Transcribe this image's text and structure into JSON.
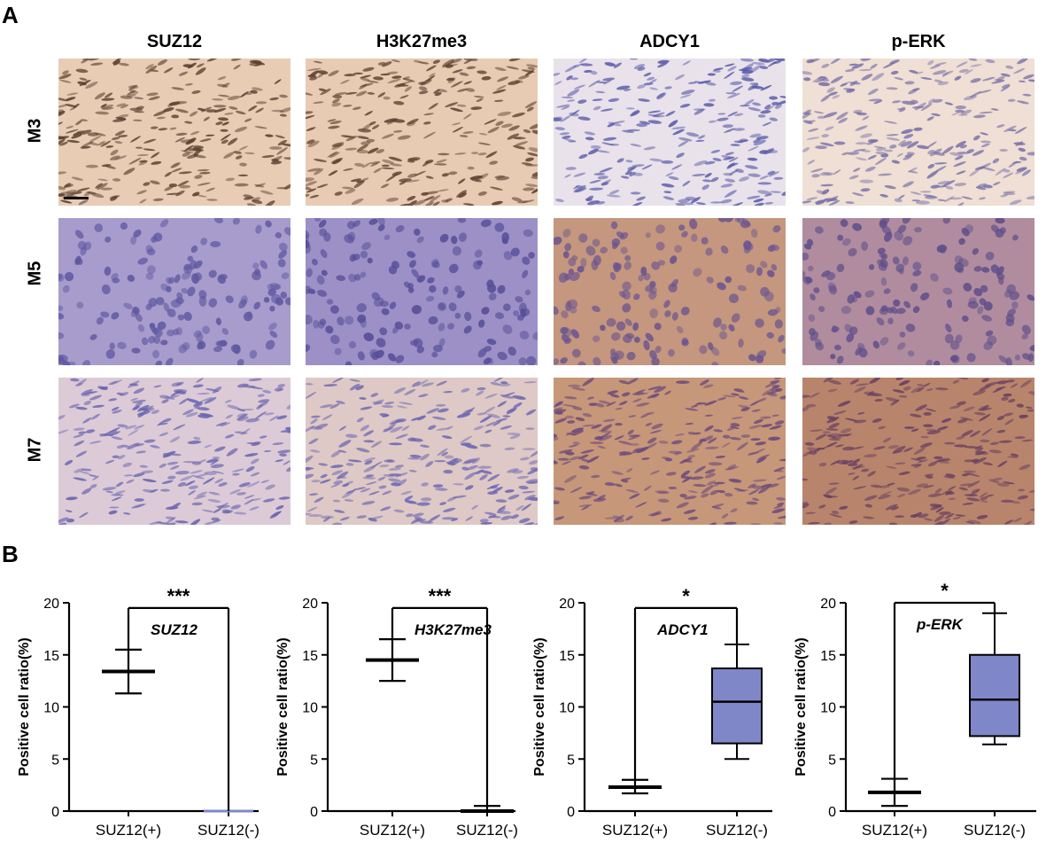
{
  "panels": {
    "a_label": "A",
    "b_label": "B"
  },
  "stains": [
    "SUZ12",
    "H3K27me3",
    "ADCY1",
    "p-ERK"
  ],
  "rows": [
    "M3",
    "M5",
    "M7"
  ],
  "micro_colors": {
    "M3": [
      "#e8cdb4",
      "#e7cbb2",
      "#e9e2ea",
      "#efdfd4"
    ],
    "M5": [
      "#a89ccc",
      "#9c90c6",
      "#c4977e",
      "#b08c9e"
    ],
    "M7": [
      "#dccbd6",
      "#dec9c6",
      "#c7977a",
      "#b8856c"
    ]
  },
  "nucleus_colors": {
    "M3": [
      "#5a4030",
      "#5e4030",
      "#5a5aa8",
      "#7870a8"
    ],
    "M5": [
      "#5e58a0",
      "#564e98",
      "#6a5490",
      "#5e4e8a"
    ],
    "M7": [
      "#6a64b0",
      "#6c66b0",
      "#6a4a7a",
      "#6a4060"
    ]
  },
  "chart_data": [
    {
      "type": "box",
      "series_label": "SUZ12",
      "ylabel": "Positive cell ratio(%)",
      "ylim": [
        0,
        20
      ],
      "yticks": [
        0,
        5,
        10,
        15,
        20
      ],
      "categories": [
        "SUZ12(+)",
        "SUZ12(-)"
      ],
      "groups": [
        {
          "min": 11.3,
          "q1": 13.4,
          "median": 13.4,
          "q3": 13.4,
          "max": 15.5,
          "filled": false
        },
        {
          "min": 0.0,
          "q1": 0.0,
          "median": 0.0,
          "q3": 0.0,
          "max": 0.0,
          "filled": false
        }
      ],
      "significance": "***",
      "bracket_y": 19.5
    },
    {
      "type": "box",
      "series_label": "H3K27me3",
      "ylabel": "Positive cell ratio(%)",
      "ylim": [
        0,
        20
      ],
      "yticks": [
        0,
        5,
        10,
        15,
        20
      ],
      "categories": [
        "SUZ12(+)",
        "SUZ12(-)"
      ],
      "groups": [
        {
          "min": 12.5,
          "q1": 14.5,
          "median": 14.5,
          "q3": 14.5,
          "max": 16.5,
          "filled": false
        },
        {
          "min": 0.0,
          "q1": 0.0,
          "median": 0.0,
          "q3": 0.0,
          "max": 0.5,
          "filled": false
        }
      ],
      "significance": "***",
      "bracket_y": 19.5
    },
    {
      "type": "box",
      "series_label": "ADCY1",
      "ylabel": "Positive cell ratio(%)",
      "ylim": [
        0,
        20
      ],
      "yticks": [
        0,
        5,
        10,
        15,
        20
      ],
      "categories": [
        "SUZ12(+)",
        "SUZ12(-)"
      ],
      "groups": [
        {
          "min": 1.7,
          "q1": 2.3,
          "median": 2.3,
          "q3": 2.4,
          "max": 3.0,
          "filled": false
        },
        {
          "min": 5.0,
          "q1": 6.5,
          "median": 10.5,
          "q3": 13.7,
          "max": 16.0,
          "filled": true
        }
      ],
      "significance": "*",
      "bracket_y": 19.5
    },
    {
      "type": "box",
      "series_label": "p-ERK",
      "ylabel": "Positive cell ratio(%)",
      "ylim": [
        0,
        20
      ],
      "yticks": [
        0,
        5,
        10,
        15,
        20
      ],
      "categories": [
        "SUZ12(+)",
        "SUZ12(-)"
      ],
      "groups": [
        {
          "min": 0.5,
          "q1": 1.7,
          "median": 1.8,
          "q3": 1.9,
          "max": 3.1,
          "filled": false
        },
        {
          "min": 6.4,
          "q1": 7.2,
          "median": 10.7,
          "q3": 15.0,
          "max": 19.0,
          "filled": true
        }
      ],
      "significance": "*",
      "bracket_y": 20.0
    }
  ],
  "box_fill": "#8087c8"
}
